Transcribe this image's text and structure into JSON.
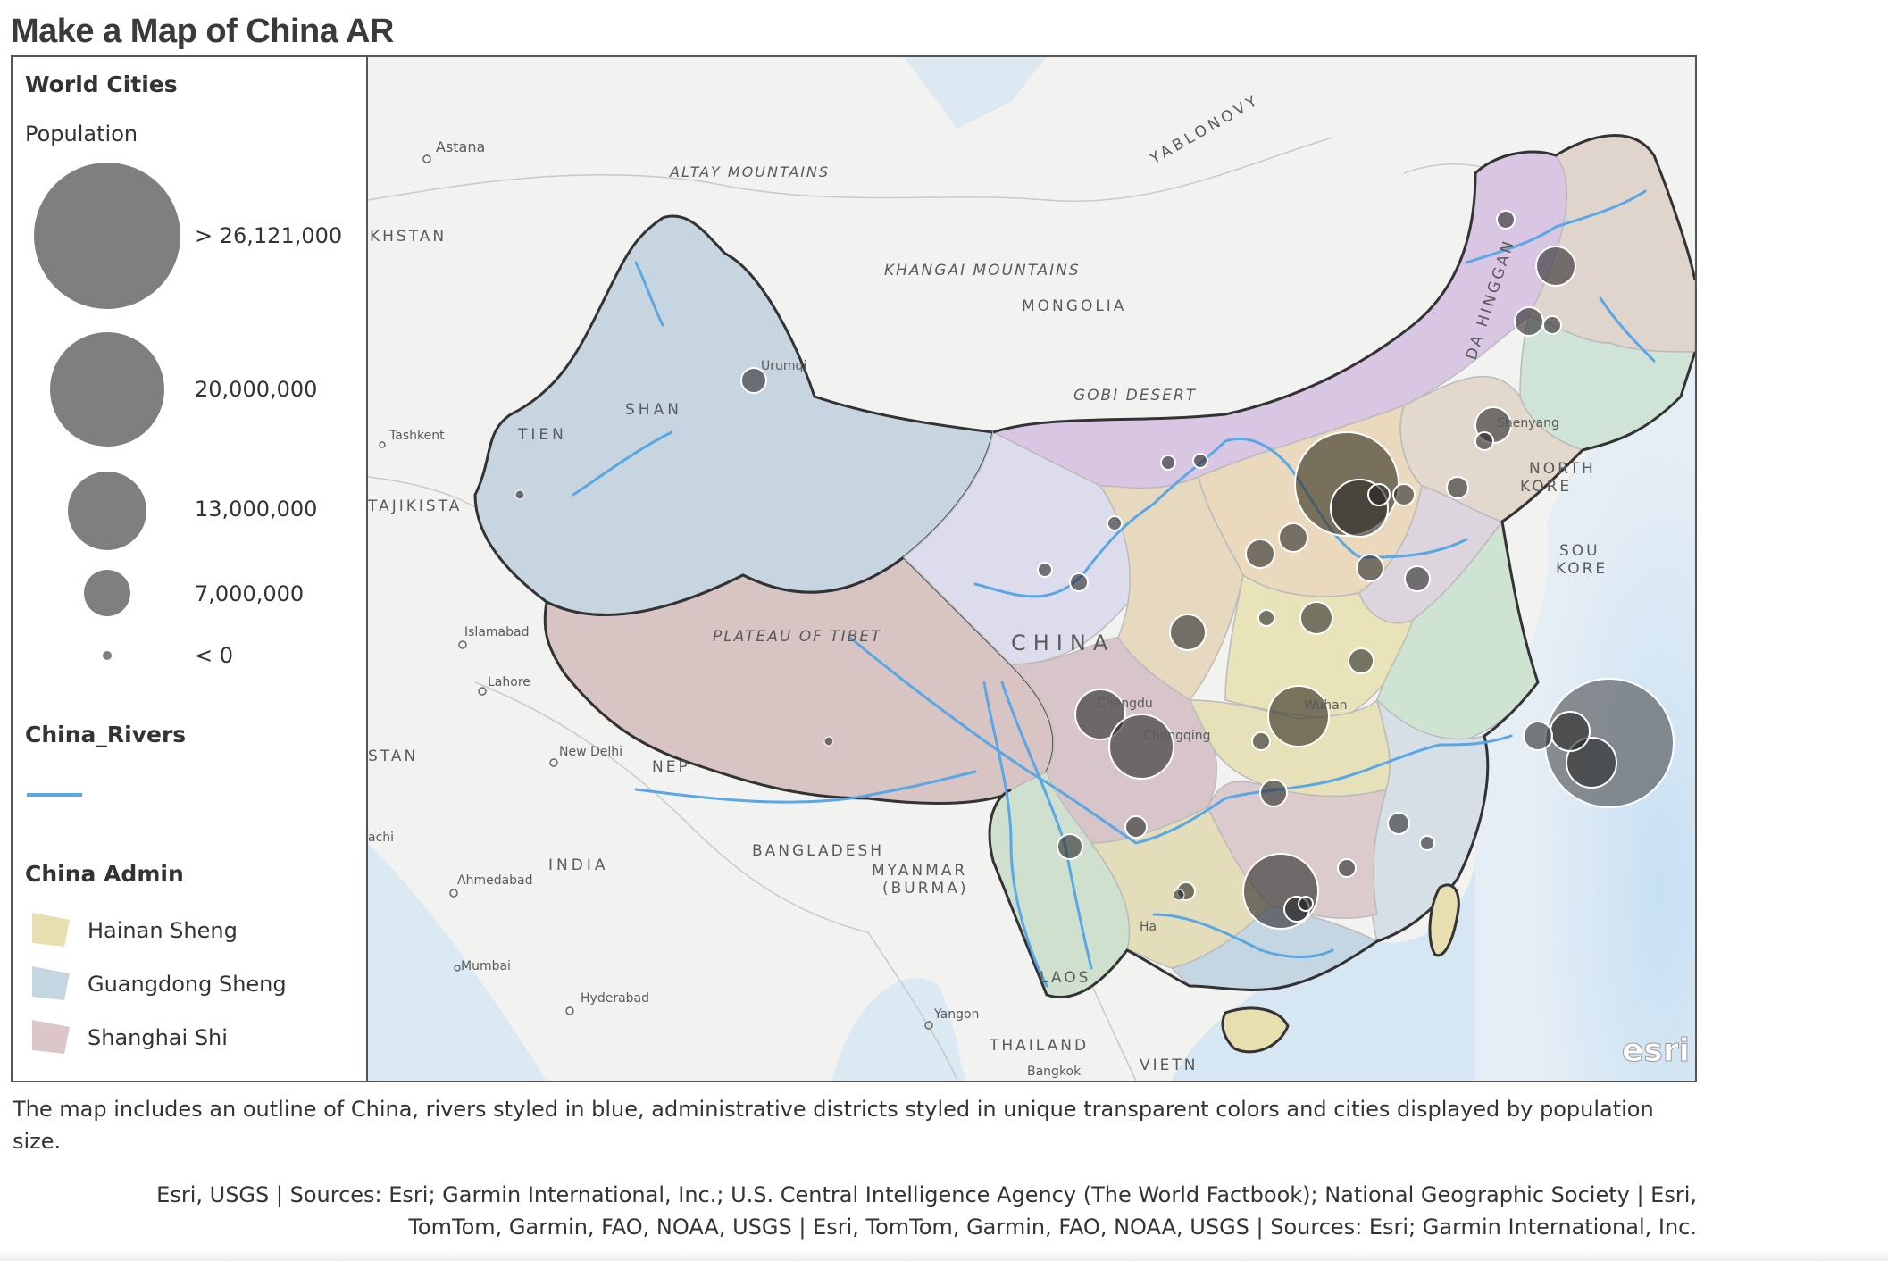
{
  "page": {
    "title": "Make a Map of China AR",
    "caption": "The map includes an outline of China, rivers styled in blue, administrative districts styled in unique transparent colors and cities displayed by population size.",
    "attribution_line1": "Esri, USGS | Sources: Esri; Garmin International, Inc.; U.S. Central Intelligence Agency (The World Factbook); National Geographic Society | Esri,",
    "attribution_line2": "TomTom, Garmin, FAO, NOAA, USGS | Esri, TomTom, Garmin, FAO, NOAA, USGS | Sources: Esri; Garmin International, Inc."
  },
  "legend": {
    "cities_title": "World Cities",
    "population_label": "Population",
    "classes": [
      {
        "label": "> 26,121,000",
        "value": 26121000
      },
      {
        "label": "20,000,000",
        "value": 20000000
      },
      {
        "label": "13,000,000",
        "value": 13000000
      },
      {
        "label": "7,000,000",
        "value": 7000000
      },
      {
        "label": "< 0",
        "value": 0
      }
    ],
    "symbol_color": "#7f7f7f",
    "rivers_title": "China_Rivers",
    "river_color": "#5aa7e6",
    "admin_title": "China Admin",
    "admin_items": [
      {
        "label": "Hainan Sheng",
        "color": "#e8dfb0"
      },
      {
        "label": "Guangdong Sheng",
        "color": "#c5d6e3"
      },
      {
        "label": "Shanghai Shi",
        "color": "#dcc6c8"
      }
    ]
  },
  "map": {
    "place_labels": {
      "astana": "Astana",
      "altay": "ALTAY MOUNTAINS",
      "yablonovy": "YABLONOVY",
      "khstan": "KHSTAN",
      "khangai": "KHANGAI MOUNTAINS",
      "mongolia": "MONGOLIA",
      "urumqi": "Urumqi",
      "gobi": "GOBI DESERT",
      "daxinggan": "DA HINGGAN",
      "tashkent": "Tashkent",
      "tien": "TIEN",
      "shan": "SHAN",
      "shenyang": "Shenyang",
      "northkorea1": "NORTH",
      "northkorea2": "KORE",
      "tajikista": "TAJIKISTA",
      "southkorea1": "SOU",
      "southkorea2": "KORE",
      "islamabad": "Islamabad",
      "plateau": "PLATEAU OF TIBET",
      "china": "CHINA",
      "lahore": "Lahore",
      "chengdu": "Chengdu",
      "chongqing": "Chongqing",
      "wuhan": "Wuhan",
      "stan": "STAN",
      "newdelhi": "New Delhi",
      "nepal": "NEP",
      "karachi": "achi",
      "india": "INDIA",
      "bangladesh": "BANGLADESH",
      "myanmar1": "MYANMAR",
      "myanmar2": "(BURMA)",
      "ahmedabad": "Ahmedabad",
      "hanoi": "Ha",
      "mumbai": "Mumbai",
      "laos": "LAOS",
      "hyderabad": "Hyderabad",
      "yangon": "Yangon",
      "thailand": "THAILAND",
      "bangkok": "Bangkok",
      "vietnam": "VIETN"
    },
    "logo_text": "esri"
  }
}
